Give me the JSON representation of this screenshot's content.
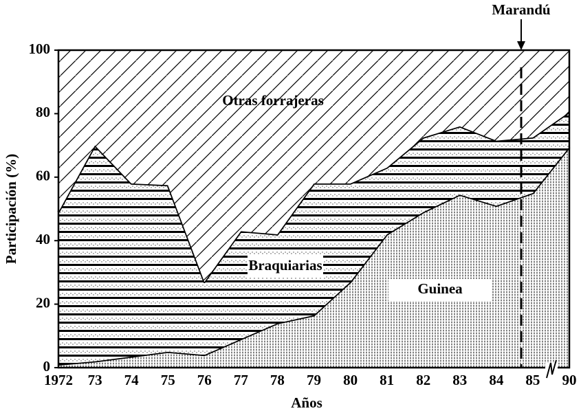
{
  "chart_data": {
    "type": "stacked-area",
    "x_label": "Años",
    "y_label": "Participación (%)",
    "annotation": "Marandú",
    "categories": [
      "1972",
      "73",
      "74",
      "75",
      "76",
      "77",
      "78",
      "79",
      "80",
      "81",
      "82",
      "83",
      "84",
      "85",
      "90"
    ],
    "series": [
      {
        "name": "Braquiarias",
        "color": "#000000",
        "values": [
          1,
          2,
          3.5,
          5,
          4,
          9,
          14,
          16.5,
          27,
          42,
          49,
          54.5,
          51,
          55,
          69.5
        ]
      },
      {
        "name": "Guinea",
        "color": "#000000",
        "values": [
          48,
          68,
          54.5,
          52.5,
          23,
          34,
          28,
          41.5,
          31,
          21,
          23.5,
          21.5,
          20.5,
          17.5,
          11
        ]
      },
      {
        "name": "Otras forrajeras",
        "color": "#000000",
        "values": [
          51,
          30,
          42,
          42.5,
          73,
          57,
          58,
          42,
          42,
          37,
          27.5,
          24,
          28.5,
          27.5,
          19.5
        ]
      }
    ],
    "ylim": [
      0,
      100
    ],
    "yticks": [
      0,
      20,
      40,
      60,
      80,
      100
    ]
  }
}
